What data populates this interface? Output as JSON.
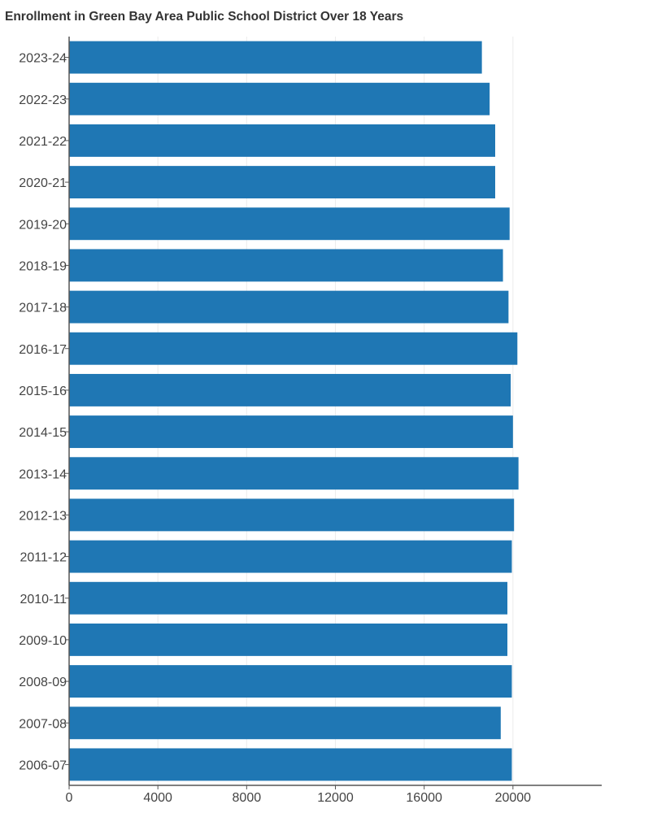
{
  "chart_data": {
    "type": "bar",
    "orientation": "horizontal",
    "title": "Enrollment in Green Bay Area Public School District Over 18 Years",
    "xlabel": "",
    "ylabel": "",
    "categories": [
      "2023-24",
      "2022-23",
      "2021-22",
      "2020-21",
      "2019-20",
      "2018-19",
      "2017-18",
      "2016-17",
      "2015-16",
      "2014-15",
      "2013-14",
      "2012-13",
      "2011-12",
      "2010-11",
      "2009-10",
      "2008-09",
      "2007-08",
      "2006-07"
    ],
    "values": [
      18600,
      18950,
      19200,
      19200,
      19850,
      19550,
      19800,
      20200,
      19900,
      20000,
      20250,
      20050,
      19950,
      19750,
      19750,
      19950,
      19450,
      19950
    ],
    "x_ticks": [
      "0",
      "4000",
      "8000",
      "12000",
      "16000",
      "20000"
    ],
    "xlim": [
      0,
      24000
    ],
    "grid": true,
    "bar_color": "#1f77b4",
    "legend": "none"
  }
}
